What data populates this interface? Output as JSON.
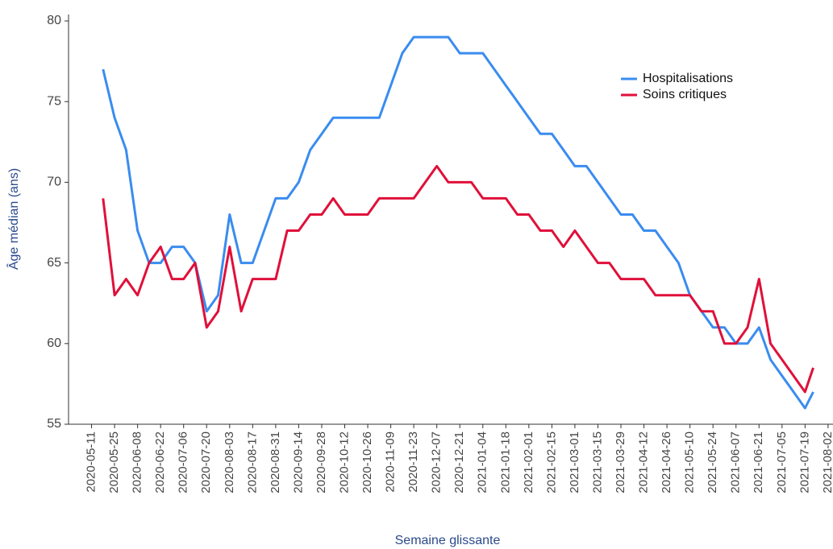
{
  "chart_data": {
    "type": "line",
    "xlabel": "Semaine glissante",
    "ylabel": "Âge médian (ans)",
    "x": [
      "2020-05-18",
      "2020-05-25",
      "2020-06-01",
      "2020-06-08",
      "2020-06-15",
      "2020-06-22",
      "2020-06-29",
      "2020-07-06",
      "2020-07-13",
      "2020-07-20",
      "2020-07-27",
      "2020-08-03",
      "2020-08-10",
      "2020-08-17",
      "2020-08-24",
      "2020-08-31",
      "2020-09-07",
      "2020-09-14",
      "2020-09-21",
      "2020-09-28",
      "2020-10-05",
      "2020-10-12",
      "2020-10-19",
      "2020-10-26",
      "2020-11-02",
      "2020-11-09",
      "2020-11-16",
      "2020-11-23",
      "2020-11-30",
      "2020-12-07",
      "2020-12-14",
      "2020-12-21",
      "2020-12-28",
      "2021-01-04",
      "2021-01-11",
      "2021-01-18",
      "2021-01-25",
      "2021-02-01",
      "2021-02-08",
      "2021-02-15",
      "2021-02-22",
      "2021-03-01",
      "2021-03-08",
      "2021-03-15",
      "2021-03-22",
      "2021-03-29",
      "2021-04-05",
      "2021-04-12",
      "2021-04-19",
      "2021-04-26",
      "2021-05-03",
      "2021-05-10",
      "2021-05-17",
      "2021-05-24",
      "2021-05-31",
      "2021-06-07",
      "2021-06-14",
      "2021-06-21",
      "2021-06-28",
      "2021-07-05",
      "2021-07-12",
      "2021-07-19",
      "2021-07-24"
    ],
    "series": [
      {
        "name": "Hospitalisations",
        "color": "#3a8cf0",
        "values": [
          77,
          74,
          72,
          67,
          65,
          65,
          66,
          66,
          65,
          62,
          63,
          68,
          65,
          65,
          67,
          69,
          69,
          70,
          72,
          73,
          74,
          74,
          74,
          74,
          74,
          76,
          78,
          79,
          79,
          79,
          79,
          78,
          78,
          78,
          77,
          76,
          75,
          74,
          73,
          73,
          72,
          71,
          71,
          70,
          69,
          68,
          68,
          67,
          67,
          66,
          65,
          63,
          62,
          61,
          61,
          60,
          60,
          61,
          59,
          58,
          57,
          56,
          57
        ]
      },
      {
        "name": "Soins critiques",
        "color": "#e0103a",
        "values": [
          69,
          63,
          64,
          63,
          65,
          66,
          64,
          64,
          65,
          61,
          62,
          66,
          62,
          64,
          64,
          64,
          67,
          67,
          68,
          68,
          69,
          68,
          68,
          68,
          69,
          69,
          69,
          69,
          70,
          71,
          70,
          70,
          70,
          69,
          69,
          69,
          68,
          68,
          67,
          67,
          66,
          67,
          66,
          65,
          65,
          64,
          64,
          64,
          63,
          63,
          63,
          63,
          62,
          62,
          60,
          60,
          61,
          64,
          60,
          59,
          58,
          57,
          58.5
        ]
      }
    ],
    "xlim": [
      "2020-04-27",
      "2021-08-05"
    ],
    "xticks": [
      "2020-05-11",
      "2020-05-25",
      "2020-06-08",
      "2020-06-22",
      "2020-07-06",
      "2020-07-20",
      "2020-08-03",
      "2020-08-17",
      "2020-08-31",
      "2020-09-14",
      "2020-09-28",
      "2020-10-12",
      "2020-10-26",
      "2020-11-09",
      "2020-11-23",
      "2020-12-07",
      "2020-12-21",
      "2021-01-04",
      "2021-01-18",
      "2021-02-01",
      "2021-02-15",
      "2021-03-01",
      "2021-03-15",
      "2021-03-29",
      "2021-04-12",
      "2021-04-26",
      "2021-05-10",
      "2021-05-24",
      "2021-06-07",
      "2021-06-21",
      "2021-07-05",
      "2021-07-19",
      "2021-08-02"
    ],
    "ylim": [
      55,
      80.4
    ],
    "yticks": [
      55,
      60,
      65,
      70,
      75,
      80
    ],
    "legend": "upper right"
  }
}
